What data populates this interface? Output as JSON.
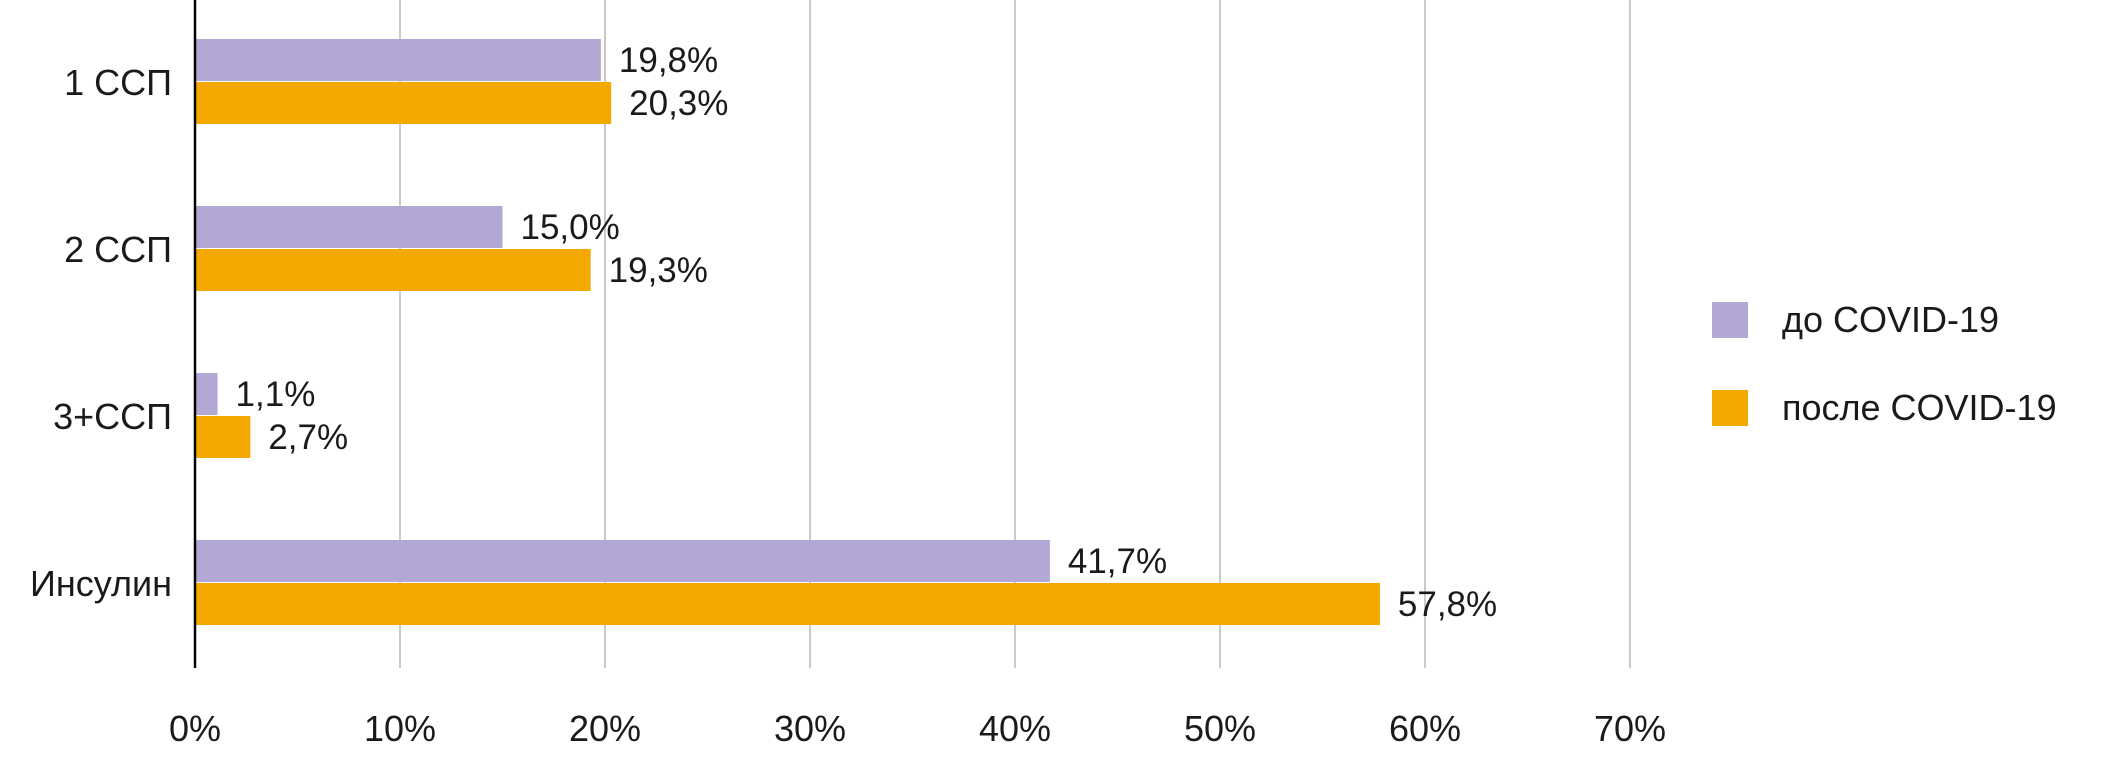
{
  "chart_data": {
    "type": "bar",
    "orientation": "horizontal",
    "categories": [
      "1 ССП",
      "2 ССП",
      "3+ССП",
      "Инсулин"
    ],
    "series": [
      {
        "name": "до COVID-19",
        "color": "#b3a8d5",
        "values": [
          19.8,
          15.0,
          1.1,
          41.7
        ],
        "labels": [
          "19,8%",
          "15,0%",
          "1,1%",
          "41,7%"
        ]
      },
      {
        "name": "после COVID-19",
        "color": "#f5a800",
        "values": [
          20.3,
          19.3,
          2.7,
          57.8
        ],
        "labels": [
          "20,3%",
          "19,3%",
          "2,7%",
          "57,8%"
        ]
      }
    ],
    "x_ticks": [
      "0%",
      "10%",
      "20%",
      "30%",
      "40%",
      "50%",
      "60%",
      "70%"
    ],
    "xlim": [
      0,
      70
    ],
    "grid": true,
    "legend_position": "right"
  }
}
